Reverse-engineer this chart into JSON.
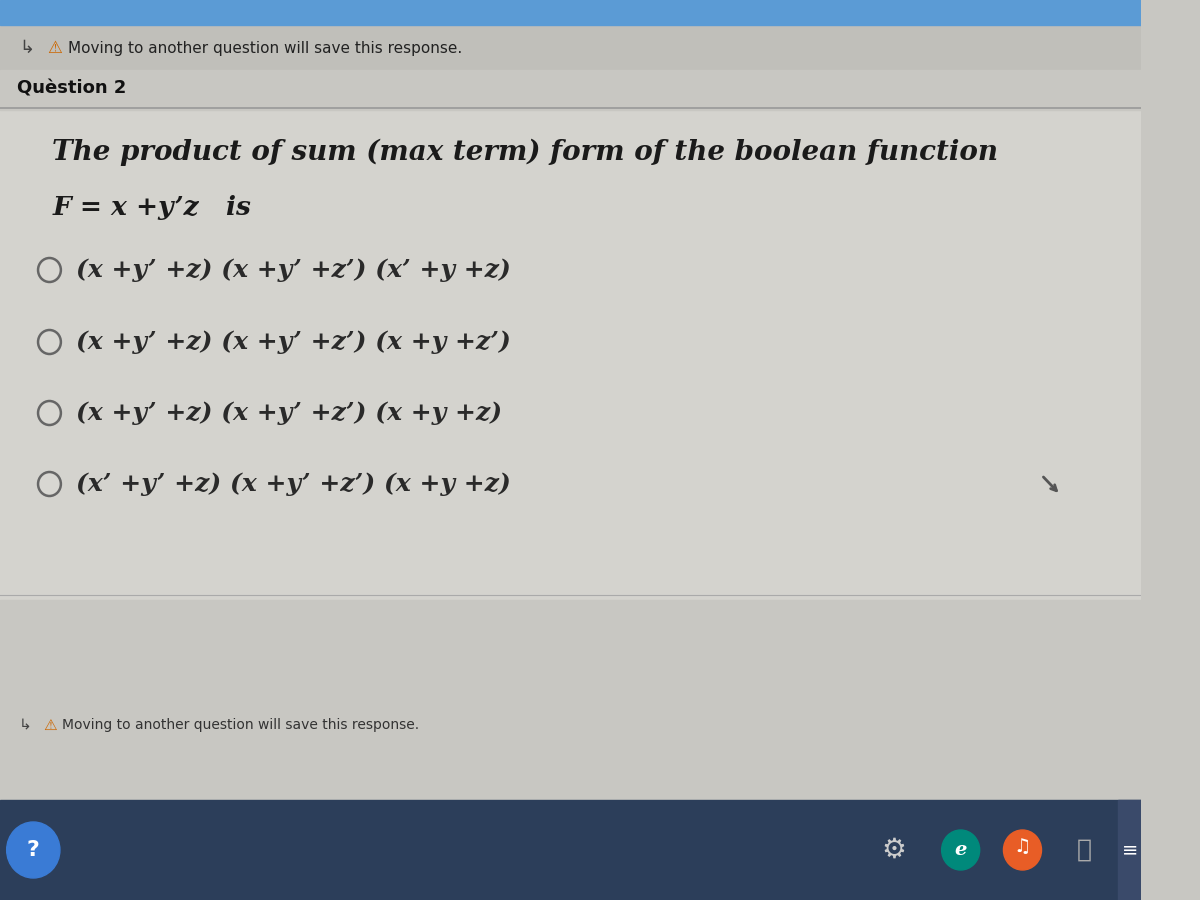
{
  "bg_main": "#c8c7c2",
  "bg_content": "#d4d3ce",
  "bg_header": "#c0bfba",
  "top_bar_color": "#5b9bd5",
  "taskbar_color": "#2c3e5a",
  "header_arrow": "↳",
  "header_warning_text": "Moving to another question will save this response.",
  "question_label": "Quèstion 2",
  "question_text": "The product of sum (max term) form of the boolean function",
  "function_line": "F = x +y’z   is",
  "options": [
    "(x +y’ +z) (x +y’ +z’) (x’ +y +z)",
    "(x +y’ +z) (x +y’ +z’) (x +y +z’)",
    "(x +y’ +z) (x +y’ +z’) (x +y +z)",
    "(x’ +y’ +z) (x +y’ +z’) (x +y +z)"
  ],
  "footer_warning_text": "Moving to another question will save this response.",
  "text_dark": "#1a1a1a",
  "text_medium": "#2a2a2a",
  "text_light": "#3a3a3a",
  "separator_color": "#999999",
  "radio_edge_color": "#666666",
  "warning_triangle_color": "#cc6600"
}
